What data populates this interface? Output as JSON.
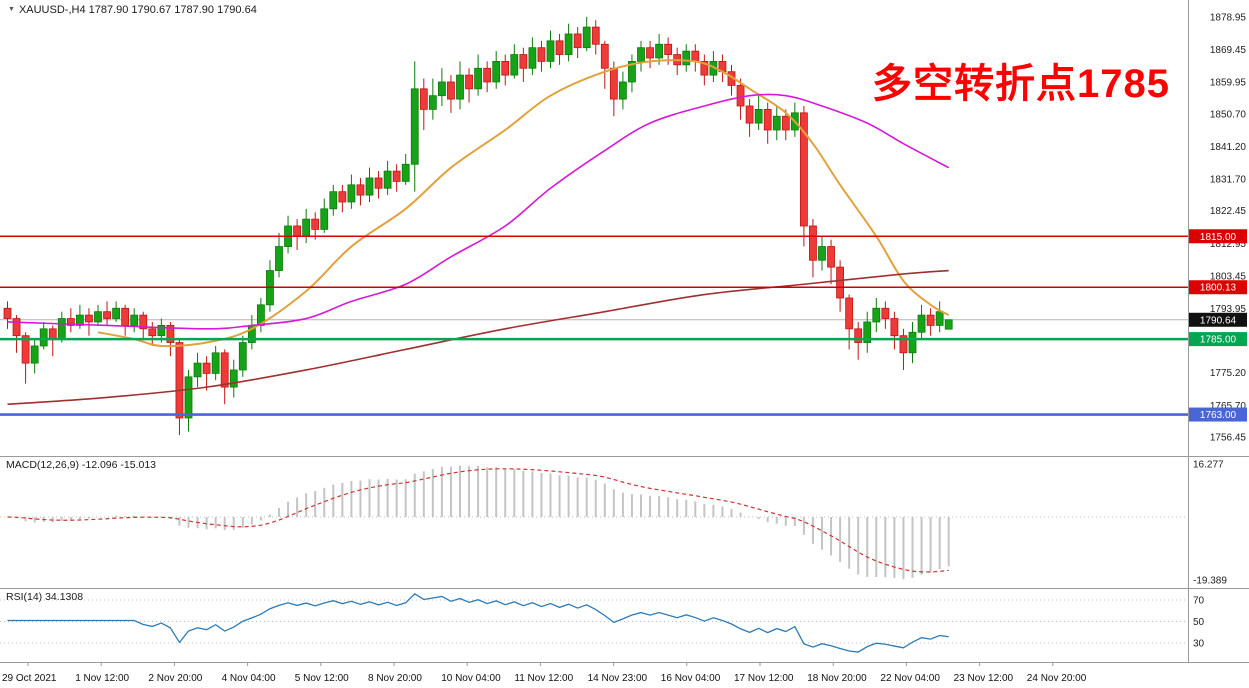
{
  "header": {
    "marker": "▼",
    "symbol_line": "XAUUSD-,H4  1787.90 1790.67 1787.90 1790.64"
  },
  "annotation": {
    "text": "多空转折点1785",
    "color": "#ff0000"
  },
  "panels": {
    "macd": {
      "label": "MACD(12,26,9) -12.096 -15.013",
      "scale_max": "16.277",
      "scale_min": "-19.389"
    },
    "rsi": {
      "label": "RSI(14) 34.1308",
      "levels": [
        "70",
        "50",
        "30"
      ]
    }
  },
  "price_axis": {
    "labels": [
      "1878.95",
      "1869.45",
      "1859.95",
      "1850.70",
      "1841.20",
      "1831.70",
      "1822.45",
      "1812.95",
      "1803.45",
      "1793.95",
      "1784.70",
      "1775.20",
      "1765.70",
      "1756.45"
    ]
  },
  "badges": [
    {
      "label": "1815.00",
      "price": 1815.0,
      "color": "#dd0000"
    },
    {
      "label": "1800.13",
      "price": 1800.13,
      "color": "#dd0000"
    },
    {
      "label": "1790.64",
      "price": 1790.64,
      "color": "#111111"
    },
    {
      "label": "1785.00",
      "price": 1785.0,
      "color": "#00a651"
    },
    {
      "label": "1763.00",
      "price": 1763.0,
      "color": "#4a66d6"
    }
  ],
  "time_axis": {
    "labels": [
      "29 Oct 2021",
      "1 Nov 12:00",
      "2 Nov 20:00",
      "4 Nov 04:00",
      "5 Nov 12:00",
      "8 Nov 20:00",
      "10 Nov 04:00",
      "11 Nov 12:00",
      "14 Nov 23:00",
      "16 Nov 04:00",
      "17 Nov 12:00",
      "18 Nov 20:00",
      "22 Nov 04:00",
      "23 Nov 12:00",
      "24 Nov 20:00"
    ]
  },
  "colors": {
    "up": "#17a317",
    "up_stroke": "#0c7a0c",
    "down": "#ef3a3a",
    "down_stroke": "#c01414",
    "bid_line": "#b4b4b4",
    "separator": "#9a9a9a",
    "hist": "#c4c4c4",
    "signal": "#cc3434",
    "rsi": "#2b7bba",
    "axis_text": "#222222",
    "level_dots": "#bdbdbd"
  },
  "chart_data": [
    {
      "type": "candlestick",
      "title": "XAUUSD-,H4",
      "ylim": [
        1756.45,
        1878.95
      ],
      "x_tick_labels": [
        "29 Oct 2021",
        "1 Nov 12:00",
        "2 Nov 20:00",
        "4 Nov 04:00",
        "5 Nov 12:00",
        "8 Nov 20:00",
        "10 Nov 04:00",
        "11 Nov 12:00",
        "14 Nov 23:00",
        "16 Nov 04:00",
        "17 Nov 12:00",
        "18 Nov 20:00",
        "22 Nov 04:00",
        "23 Nov 12:00",
        "24 Nov 20:00"
      ],
      "current_price": 1790.64,
      "ohlc": [
        [
          1794,
          1796,
          1788,
          1791
        ],
        [
          1791,
          1792,
          1781,
          1786
        ],
        [
          1786,
          1787,
          1772,
          1778
        ],
        [
          1778,
          1785,
          1775,
          1783
        ],
        [
          1783,
          1790,
          1782,
          1788
        ],
        [
          1788,
          1789,
          1780,
          1785
        ],
        [
          1785,
          1793,
          1784,
          1791
        ],
        [
          1791,
          1794,
          1787,
          1789
        ],
        [
          1789,
          1795,
          1788,
          1792
        ],
        [
          1792,
          1794,
          1786,
          1790
        ],
        [
          1790,
          1795,
          1789,
          1793
        ],
        [
          1793,
          1796,
          1789,
          1791
        ],
        [
          1791,
          1796,
          1790,
          1794
        ],
        [
          1794,
          1795,
          1786,
          1789
        ],
        [
          1789,
          1794,
          1787,
          1792
        ],
        [
          1792,
          1793,
          1785,
          1788
        ],
        [
          1788,
          1790,
          1783,
          1786
        ],
        [
          1786,
          1791,
          1784,
          1789
        ],
        [
          1789,
          1790,
          1780,
          1784
        ],
        [
          1784,
          1785,
          1757,
          1762
        ],
        [
          1762,
          1776,
          1758,
          1774
        ],
        [
          1774,
          1781,
          1771,
          1778
        ],
        [
          1778,
          1780,
          1770,
          1775
        ],
        [
          1775,
          1783,
          1773,
          1781
        ],
        [
          1781,
          1782,
          1766,
          1771
        ],
        [
          1771,
          1779,
          1768,
          1776
        ],
        [
          1776,
          1786,
          1774,
          1784
        ],
        [
          1784,
          1792,
          1782,
          1789
        ],
        [
          1789,
          1797,
          1787,
          1795
        ],
        [
          1795,
          1808,
          1793,
          1805
        ],
        [
          1805,
          1816,
          1803,
          1812
        ],
        [
          1812,
          1821,
          1810,
          1818
        ],
        [
          1818,
          1820,
          1811,
          1815
        ],
        [
          1815,
          1823,
          1813,
          1820
        ],
        [
          1820,
          1822,
          1814,
          1817
        ],
        [
          1817,
          1826,
          1816,
          1823
        ],
        [
          1823,
          1830,
          1821,
          1828
        ],
        [
          1828,
          1830,
          1822,
          1825
        ],
        [
          1825,
          1833,
          1823,
          1830
        ],
        [
          1830,
          1832,
          1824,
          1827
        ],
        [
          1827,
          1835,
          1825,
          1832
        ],
        [
          1832,
          1834,
          1826,
          1829
        ],
        [
          1829,
          1837,
          1827,
          1834
        ],
        [
          1834,
          1836,
          1828,
          1831
        ],
        [
          1831,
          1839,
          1830,
          1836
        ],
        [
          1836,
          1866,
          1828,
          1858
        ],
        [
          1858,
          1861,
          1846,
          1852
        ],
        [
          1852,
          1861,
          1849,
          1856
        ],
        [
          1856,
          1864,
          1853,
          1860
        ],
        [
          1860,
          1862,
          1851,
          1855
        ],
        [
          1855,
          1866,
          1852,
          1862
        ],
        [
          1862,
          1864,
          1854,
          1858
        ],
        [
          1858,
          1868,
          1856,
          1864
        ],
        [
          1864,
          1866,
          1857,
          1860
        ],
        [
          1860,
          1869,
          1858,
          1866
        ],
        [
          1866,
          1868,
          1859,
          1862
        ],
        [
          1862,
          1871,
          1861,
          1868
        ],
        [
          1868,
          1870,
          1860,
          1864
        ],
        [
          1864,
          1873,
          1862,
          1870
        ],
        [
          1870,
          1872,
          1863,
          1866
        ],
        [
          1866,
          1875,
          1864,
          1872
        ],
        [
          1872,
          1874,
          1865,
          1868
        ],
        [
          1868,
          1877,
          1866,
          1874
        ],
        [
          1874,
          1876,
          1867,
          1870
        ],
        [
          1870,
          1878.95,
          1869,
          1876
        ],
        [
          1876,
          1878,
          1868,
          1871
        ],
        [
          1871,
          1872,
          1858,
          1864
        ],
        [
          1864,
          1866,
          1850,
          1855
        ],
        [
          1855,
          1863,
          1852,
          1860
        ],
        [
          1860,
          1868,
          1857,
          1866
        ],
        [
          1866,
          1872,
          1863,
          1870
        ],
        [
          1870,
          1872,
          1864,
          1867
        ],
        [
          1867,
          1874,
          1865,
          1871
        ],
        [
          1871,
          1873,
          1865,
          1868
        ],
        [
          1868,
          1870,
          1862,
          1865
        ],
        [
          1865,
          1871,
          1863,
          1869
        ],
        [
          1869,
          1871,
          1863,
          1866
        ],
        [
          1866,
          1868,
          1859,
          1862
        ],
        [
          1862,
          1869,
          1860,
          1866
        ],
        [
          1866,
          1868,
          1860,
          1863
        ],
        [
          1863,
          1865,
          1856,
          1859
        ],
        [
          1859,
          1861,
          1849,
          1853
        ],
        [
          1853,
          1855,
          1844,
          1848
        ],
        [
          1848,
          1856,
          1846,
          1852
        ],
        [
          1852,
          1854,
          1842,
          1846
        ],
        [
          1846,
          1853,
          1843,
          1850
        ],
        [
          1850,
          1852,
          1843,
          1846
        ],
        [
          1846,
          1854,
          1844,
          1851
        ],
        [
          1851,
          1853,
          1812,
          1818
        ],
        [
          1818,
          1820,
          1803,
          1808
        ],
        [
          1808,
          1815,
          1805,
          1812
        ],
        [
          1812,
          1814,
          1801,
          1806
        ],
        [
          1806,
          1808,
          1793,
          1797
        ],
        [
          1797,
          1798,
          1782,
          1788
        ],
        [
          1788,
          1790,
          1779,
          1784
        ],
        [
          1784,
          1793,
          1781,
          1790
        ],
        [
          1790,
          1797,
          1787,
          1794
        ],
        [
          1794,
          1796,
          1788,
          1791
        ],
        [
          1791,
          1793,
          1782,
          1786
        ],
        [
          1786,
          1788,
          1776,
          1781
        ],
        [
          1781,
          1790,
          1778,
          1787
        ],
        [
          1787,
          1795,
          1785,
          1792
        ],
        [
          1792,
          1794,
          1786,
          1789
        ],
        [
          1789,
          1796,
          1787,
          1793
        ],
        [
          1787.9,
          1790.67,
          1787.9,
          1790.64
        ]
      ],
      "moving_averages": [
        {
          "name": "ma-fast-orange-line",
          "color": "#e2a13c",
          "width": 2,
          "points": [
            [
              10,
              1787
            ],
            [
              14,
              1785
            ],
            [
              17,
              1783
            ],
            [
              22,
              1784
            ],
            [
              27,
              1788
            ],
            [
              33,
              1799
            ],
            [
              38,
              1812
            ],
            [
              44,
              1823
            ],
            [
              49,
              1835
            ],
            [
              55,
              1846
            ],
            [
              60,
              1856
            ],
            [
              66,
              1863
            ],
            [
              71,
              1866
            ],
            [
              76,
              1866
            ],
            [
              79,
              1863
            ],
            [
              82,
              1858
            ],
            [
              86,
              1851
            ],
            [
              89,
              1842
            ],
            [
              92,
              1830
            ],
            [
              96,
              1815
            ],
            [
              99,
              1802
            ],
            [
              102,
              1795
            ],
            [
              104,
              1792
            ]
          ]
        },
        {
          "name": "ma-mid-magenta-line",
          "color": "#d619d6",
          "width": 1.6,
          "points": [
            [
              0,
              1790
            ],
            [
              11,
              1789
            ],
            [
              22,
              1788
            ],
            [
              27,
              1789
            ],
            [
              33,
              1791
            ],
            [
              38,
              1796
            ],
            [
              44,
              1801
            ],
            [
              49,
              1809
            ],
            [
              55,
              1818
            ],
            [
              60,
              1829
            ],
            [
              66,
              1840
            ],
            [
              71,
              1848
            ],
            [
              77,
              1853
            ],
            [
              82,
              1856
            ],
            [
              86,
              1856
            ],
            [
              90,
              1853
            ],
            [
              95,
              1848
            ],
            [
              99,
              1842
            ],
            [
              104,
              1835
            ]
          ]
        },
        {
          "name": "ma-slow-darkred-line",
          "color": "#a03030",
          "width": 1.6,
          "points": [
            [
              0,
              1766
            ],
            [
              11,
              1768
            ],
            [
              22,
              1771
            ],
            [
              33,
              1776
            ],
            [
              44,
              1782
            ],
            [
              55,
              1788
            ],
            [
              66,
              1793
            ],
            [
              77,
              1798
            ],
            [
              88,
              1801
            ],
            [
              99,
              1804
            ],
            [
              104,
              1805
            ]
          ]
        }
      ],
      "horizontal_lines": [
        {
          "price": 1815.0,
          "color": "#dd0000",
          "width": 1.4
        },
        {
          "price": 1800.13,
          "color": "#cc0000",
          "width": 1.4
        },
        {
          "price": 1785.0,
          "color": "#00a651",
          "width": 2.6
        },
        {
          "price": 1763.0,
          "color": "#4a66d6",
          "width": 2.6
        }
      ]
    },
    {
      "type": "bar",
      "title": "MACD(12,26,9)",
      "current_macd": -12.096,
      "current_signal": -15.013,
      "ylim": [
        -19.389,
        16.277
      ]
    },
    {
      "type": "line",
      "title": "RSI(14)",
      "current_value": 34.1308,
      "levels": [
        70,
        50,
        30
      ]
    }
  ]
}
